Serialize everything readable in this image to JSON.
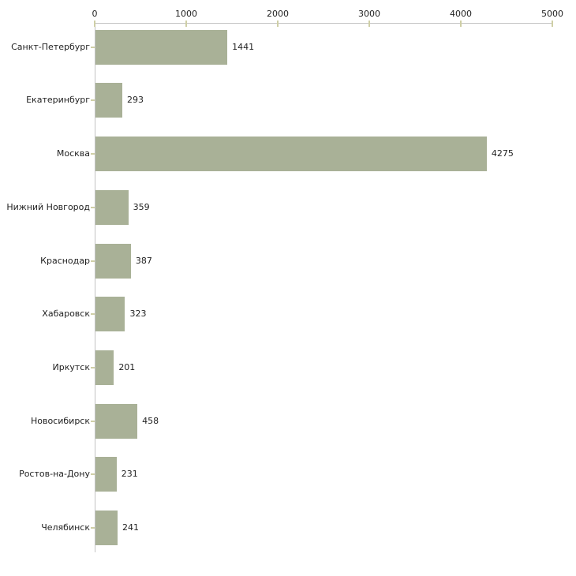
{
  "chart_data": {
    "type": "bar",
    "orientation": "horizontal",
    "title": "",
    "xlabel": "",
    "ylabel": "",
    "grid": false,
    "legend": false,
    "categories": [
      "Санкт-Петербург",
      "Екатеринбург",
      "Москва",
      "Нижний Новгород",
      "Краснодар",
      "Хабаровск",
      "Иркутск",
      "Новосибирск",
      "Ростов-на-Дону",
      "Челябинск"
    ],
    "values": [
      1441,
      293,
      4275,
      359,
      387,
      323,
      201,
      458,
      231,
      241
    ],
    "value_labels": [
      "1441",
      "293",
      "4275",
      "359",
      "387",
      "323",
      "201",
      "458",
      "231",
      "241"
    ],
    "xlim": [
      0,
      5000
    ],
    "x_ticks": [
      0,
      1000,
      2000,
      3000,
      4000,
      5000
    ],
    "x_tick_labels": [
      "0",
      "1000",
      "2000",
      "3000",
      "4000",
      "5000"
    ],
    "axis_position": "top",
    "bar_color": "#a9b197",
    "axis_line_color": "#c3c3c3",
    "tick_color": "#cfcfa6",
    "label_color": "#222222",
    "background_color": "#ffffff"
  }
}
